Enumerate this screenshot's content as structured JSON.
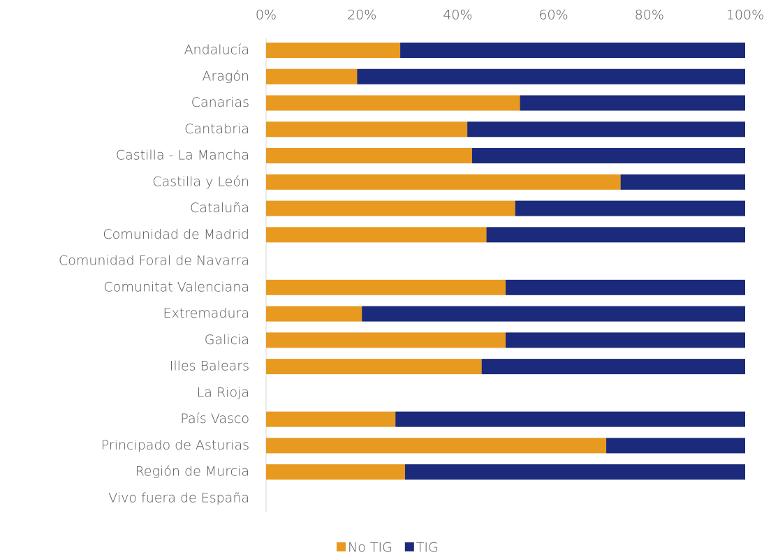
{
  "chart_data": {
    "type": "stacked-bar-horizontal",
    "categories": [
      "Andalucía",
      "Aragón",
      "Canarias",
      "Cantabria",
      "Castilla - La Mancha",
      "Castilla y León",
      "Cataluña",
      "Comunidad de Madrid",
      "Comunidad Foral de Navarra",
      "Comunitat Valenciana",
      "Extremadura",
      "Galicia",
      "Illes Balears",
      "La Rioja",
      "País Vasco",
      "Principado de Asturias",
      "Región de Murcia",
      "Vivo fuera de España"
    ],
    "series": [
      {
        "name": "No TIG",
        "color": "#e8991f",
        "values": [
          28,
          19,
          53,
          42,
          43,
          74,
          52,
          46,
          null,
          50,
          20,
          50,
          45,
          null,
          27,
          71,
          29,
          null
        ]
      },
      {
        "name": "TIG",
        "color": "#1b2a7a",
        "values": [
          72,
          81,
          47,
          58,
          57,
          26,
          48,
          54,
          null,
          50,
          80,
          50,
          55,
          null,
          73,
          29,
          71,
          null
        ]
      }
    ],
    "xlim": [
      0,
      100
    ],
    "xticks": [
      {
        "value": 0,
        "label": "0%"
      },
      {
        "value": 20,
        "label": "20%"
      },
      {
        "value": 40,
        "label": "40%"
      },
      {
        "value": 60,
        "label": "60%"
      },
      {
        "value": 80,
        "label": "80%"
      },
      {
        "value": 100,
        "label": "100%"
      }
    ],
    "legend": "bottom"
  }
}
